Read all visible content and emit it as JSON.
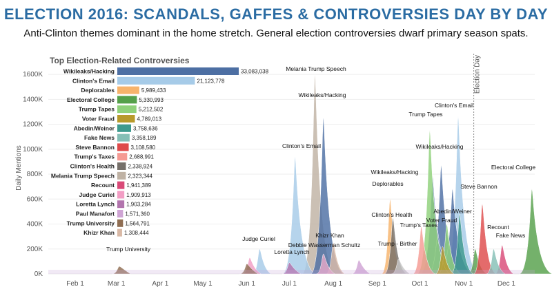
{
  "header": {
    "title": "ELECTION 2016: SCANDALS, GAFFES & CONTROVERSIES DAY BY DAY",
    "subtitle": "Anti-Clinton themes dominant in the home stretch. General election controversies dwarf primary season spats."
  },
  "chart_data": [
    {
      "type": "area",
      "ylabel": "Daily Mentions",
      "ylim": [
        0,
        1700000
      ],
      "yticks": [
        "0K",
        "200K",
        "400K",
        "600K",
        "800K",
        "1000K",
        "1200K",
        "1400K",
        "1600K"
      ],
      "xticks": [
        "Feb 1",
        "Mar 1",
        "Apr 1",
        "May 1",
        "Jun 1",
        "Jul 1",
        "Aug 1",
        "Sep 1",
        "Oct 1",
        "Nov 1",
        "Dec 1"
      ],
      "reference_line": {
        "label": "Election Day",
        "date": "Nov 8"
      },
      "series": [
        {
          "name": "Wikileaks/Hacking",
          "color": "#4d6fa3",
          "peaks": [
            [
              "Jul 25",
              1250000
            ],
            [
              "Oct 10",
              780000
            ],
            [
              "Oct 16",
              870000
            ],
            [
              "Oct 24",
              680000
            ]
          ]
        },
        {
          "name": "Clinton's Email",
          "color": "#a6cbe8",
          "peaks": [
            [
              "Jul 5",
              940000
            ],
            [
              "Oct 28",
              1260000
            ],
            [
              "Jun 10",
              200000
            ]
          ]
        },
        {
          "name": "Deplorables",
          "color": "#f7b36b",
          "peaks": [
            [
              "Sep 10",
              600000
            ]
          ]
        },
        {
          "name": "Electoral College",
          "color": "#55a04a",
          "peaks": [
            [
              "Dec 19",
              680000
            ],
            [
              "Nov 9",
              200000
            ]
          ]
        },
        {
          "name": "Trump Tapes",
          "color": "#8fd17a",
          "peaks": [
            [
              "Oct 8",
              1150000
            ],
            [
              "Oct 20",
              400000
            ]
          ]
        },
        {
          "name": "Voter Fraud",
          "color": "#b89a2b",
          "peaks": [
            [
              "Oct 17",
              220000
            ]
          ]
        },
        {
          "name": "Abedin/Weiner",
          "color": "#3e9a8e",
          "peaks": [
            [
              "Oct 29",
              480000
            ]
          ]
        },
        {
          "name": "Fake News",
          "color": "#85bfb6",
          "peaks": [
            [
              "Nov 22",
              200000
            ]
          ]
        },
        {
          "name": "Steve Bannon",
          "color": "#de4b4b",
          "peaks": [
            [
              "Nov 14",
              560000
            ]
          ]
        },
        {
          "name": "Trump's Taxes",
          "color": "#f59a93",
          "peaks": [
            [
              "Oct 2",
              380000
            ]
          ]
        },
        {
          "name": "Clinton's Health",
          "color": "#76706a",
          "peaks": [
            [
              "Sep 12",
              450000
            ]
          ]
        },
        {
          "name": "Melania Trump Speech",
          "color": "#bfb2a4",
          "peaks": [
            [
              "Jul 19",
              1600000
            ]
          ]
        },
        {
          "name": "Recount",
          "color": "#d94a78",
          "peaks": [
            [
              "Nov 28",
              230000
            ]
          ]
        },
        {
          "name": "Judge Curiel",
          "color": "#f29dc4",
          "peaks": [
            [
              "Jun 3",
              130000
            ]
          ]
        },
        {
          "name": "Loretta Lynch",
          "color": "#b274ad",
          "peaks": [
            [
              "Jul 1",
              90000
            ]
          ]
        },
        {
          "name": "Paul Manafort",
          "color": "#cfa4d4",
          "peaks": [
            [
              "Aug 19",
              110000
            ]
          ]
        },
        {
          "name": "Trump University",
          "color": "#8f6d52",
          "peaks": [
            [
              "Mar 3",
              60000
            ],
            [
              "Jun 1",
              80000
            ]
          ]
        },
        {
          "name": "Khizr Khan",
          "color": "#d9b9a6",
          "peaks": [
            [
              "Aug 1",
              250000
            ]
          ]
        },
        {
          "name": "Debbie Wasserman Schultz",
          "color": "#e8a8c8",
          "peaks": [
            [
              "Jul 25",
              160000
            ]
          ]
        },
        {
          "name": "Trump - Birther",
          "color": "#c6c6c6",
          "peaks": [
            [
              "Sep 16",
              120000
            ]
          ]
        }
      ],
      "annotations": [
        {
          "text": "Melania Trump Speech",
          "date": "Jul 19"
        },
        {
          "text": "Wikileaks/Hacking",
          "date": "Jul 25"
        },
        {
          "text": "Clinton's Email",
          "date": "Jul 5"
        },
        {
          "text": "Judge Curiel",
          "date": "Jun 3"
        },
        {
          "text": "Loretta Lynch",
          "date": "Jul 1"
        },
        {
          "text": "Debbie Wasserman Schultz",
          "date": "Jul 25"
        },
        {
          "text": "Khizr Khan",
          "date": "Aug 1"
        },
        {
          "text": "Trump University",
          "date": "Mar 3"
        },
        {
          "text": "Wikileaks/Hacking",
          "date": "Sep 10"
        },
        {
          "text": "Deplorables",
          "date": "Sep 10"
        },
        {
          "text": "Clinton's Health",
          "date": "Sep 12"
        },
        {
          "text": "Trump - Birther",
          "date": "Sep 16"
        },
        {
          "text": "Trump's Taxes",
          "date": "Oct 2"
        },
        {
          "text": "Trump Tapes",
          "date": "Oct 8"
        },
        {
          "text": "Clinton's Email",
          "date": "Oct 28"
        },
        {
          "text": "Wikileaks/Hacking",
          "date": "Oct 16"
        },
        {
          "text": "Voter Fraud",
          "date": "Oct 17"
        },
        {
          "text": "Abedin/Weiner",
          "date": "Oct 29"
        },
        {
          "text": "Steve Bannon",
          "date": "Nov 14"
        },
        {
          "text": "Electoral College",
          "date": "Dec 19"
        },
        {
          "text": "Recount",
          "date": "Nov 28"
        },
        {
          "text": "Fake News",
          "date": "Nov 22"
        }
      ]
    },
    {
      "type": "bar",
      "title": "Top Election-Related Controversies",
      "categories": [
        "Wikileaks/Hacking",
        "Clinton's Email",
        "Deplorables",
        "Electoral College",
        "Trump Tapes",
        "Voter Fraud",
        "Abedin/Weiner",
        "Fake News",
        "Steve Bannon",
        "Trump's Taxes",
        "Clinton's Health",
        "Melania Trump Speech",
        "Recount",
        "Judge Curiel",
        "Loretta Lynch",
        "Paul Manafort",
        "Trump University",
        "Khizr Khan"
      ],
      "values": [
        33083038,
        21123778,
        5989433,
        5330993,
        5212502,
        4789013,
        3758636,
        3358189,
        3108580,
        2688991,
        2338924,
        2323344,
        1941389,
        1909913,
        1903284,
        1571360,
        1564791,
        1308444
      ],
      "value_labels": [
        "33,083,038",
        "21,123,778",
        "5,989,433",
        "5,330,993",
        "5,212,502",
        "4,789,013",
        "3,758,636",
        "3,358,189",
        "3,108,580",
        "2,688,991",
        "2,338,924",
        "2,323,344",
        "1,941,389",
        "1,909,913",
        "1,903,284",
        "1,571,360",
        "1,564,791",
        "1,308,444"
      ],
      "colors": [
        "#4d6fa3",
        "#a6cbe8",
        "#f7b36b",
        "#55a04a",
        "#8fd17a",
        "#b89a2b",
        "#3e9a8e",
        "#85bfb6",
        "#de4b4b",
        "#f59a93",
        "#76706a",
        "#bfb2a4",
        "#d94a78",
        "#f29dc4",
        "#b274ad",
        "#cfa4d4",
        "#8f6d52",
        "#d9b9a6"
      ]
    }
  ]
}
